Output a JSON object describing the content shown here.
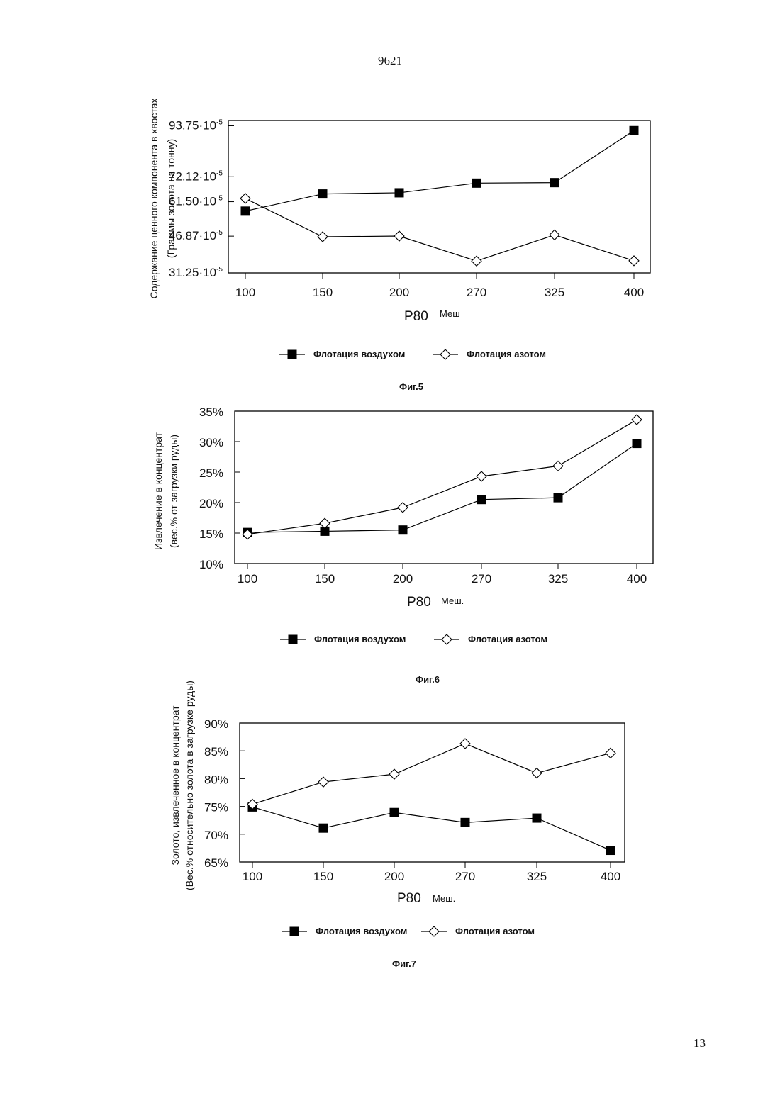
{
  "page": {
    "header": "9621",
    "page_number": "13"
  },
  "chart_data": [
    {
      "type": "line",
      "caption": "Фиг.5",
      "ylabel_lines": [
        "Содержание ценного компонента в хвостах",
        "(Граммы золота на тонну)"
      ],
      "xlabel": "P80",
      "xunit": "Меш",
      "categories": [
        "100",
        "150",
        "200",
        "270",
        "325",
        "400"
      ],
      "y_ticks": [
        {
          "value": 31.25,
          "mantissa": "31.25",
          "exp": "-5"
        },
        {
          "value": 46.87,
          "mantissa": "46.87",
          "exp": "-5"
        },
        {
          "value": 61.5,
          "mantissa": "61.50",
          "exp": "-5"
        },
        {
          "value": 72.12,
          "mantissa": "72.12",
          "exp": "-5"
        },
        {
          "value": 93.75,
          "mantissa": "93.75",
          "exp": "-5"
        }
      ],
      "y_scale_note": "values ×10^-5 g/t",
      "series": [
        {
          "name": "Флотация воздухом",
          "marker": "square",
          "values": [
            57.5,
            64.8,
            65.3,
            69.4,
            69.6,
            91.7
          ]
        },
        {
          "name": "Флотация азотом",
          "marker": "diamond",
          "values": [
            62.9,
            46.6,
            46.9,
            36.3,
            47.4,
            36.4
          ]
        }
      ],
      "legend_position": "bottom",
      "grid": false
    },
    {
      "type": "line",
      "caption": "Фиг.6",
      "ylabel_lines": [
        "Извлечение в концентрат",
        "(вес.% от загрузки руды)"
      ],
      "xlabel": "P80",
      "xunit": "Меш.",
      "categories": [
        "100",
        "150",
        "200",
        "270",
        "325",
        "400"
      ],
      "y_ticks": [
        {
          "value": 10,
          "label": "10%"
        },
        {
          "value": 15,
          "label": "15%"
        },
        {
          "value": 20,
          "label": "20%"
        },
        {
          "value": 25,
          "label": "25%"
        },
        {
          "value": 30,
          "label": "30%"
        },
        {
          "value": 35,
          "label": "35%"
        }
      ],
      "ylim": [
        10,
        35
      ],
      "series": [
        {
          "name": "Флотация воздухом",
          "marker": "square",
          "values": [
            15.1,
            15.3,
            15.5,
            20.5,
            20.8,
            29.7
          ]
        },
        {
          "name": "Флотация азотом",
          "marker": "diamond",
          "values": [
            14.8,
            16.6,
            19.2,
            24.3,
            26.0,
            33.6
          ]
        }
      ],
      "legend_position": "bottom",
      "grid": false
    },
    {
      "type": "line",
      "caption": "Фиг.7",
      "ylabel_lines": [
        "Золото, извлеченное в концентрат",
        "(Вес.% относительно золота в загрузке руды)"
      ],
      "xlabel": "P80",
      "xunit": "Меш.",
      "categories": [
        "100",
        "150",
        "200",
        "270",
        "325",
        "400"
      ],
      "y_ticks": [
        {
          "value": 65,
          "label": "65%"
        },
        {
          "value": 70,
          "label": "70%"
        },
        {
          "value": 75,
          "label": "75%"
        },
        {
          "value": 80,
          "label": "80%"
        },
        {
          "value": 85,
          "label": "85%"
        },
        {
          "value": 90,
          "label": "90%"
        }
      ],
      "ylim": [
        65,
        90
      ],
      "series": [
        {
          "name": "Флотация воздухом",
          "marker": "square",
          "values": [
            74.9,
            71.1,
            73.9,
            72.1,
            72.9,
            67.1
          ]
        },
        {
          "name": "Флотация азотом",
          "marker": "diamond",
          "values": [
            75.4,
            79.4,
            80.8,
            86.3,
            81.0,
            84.6
          ]
        }
      ],
      "legend_position": "bottom",
      "grid": false
    }
  ]
}
